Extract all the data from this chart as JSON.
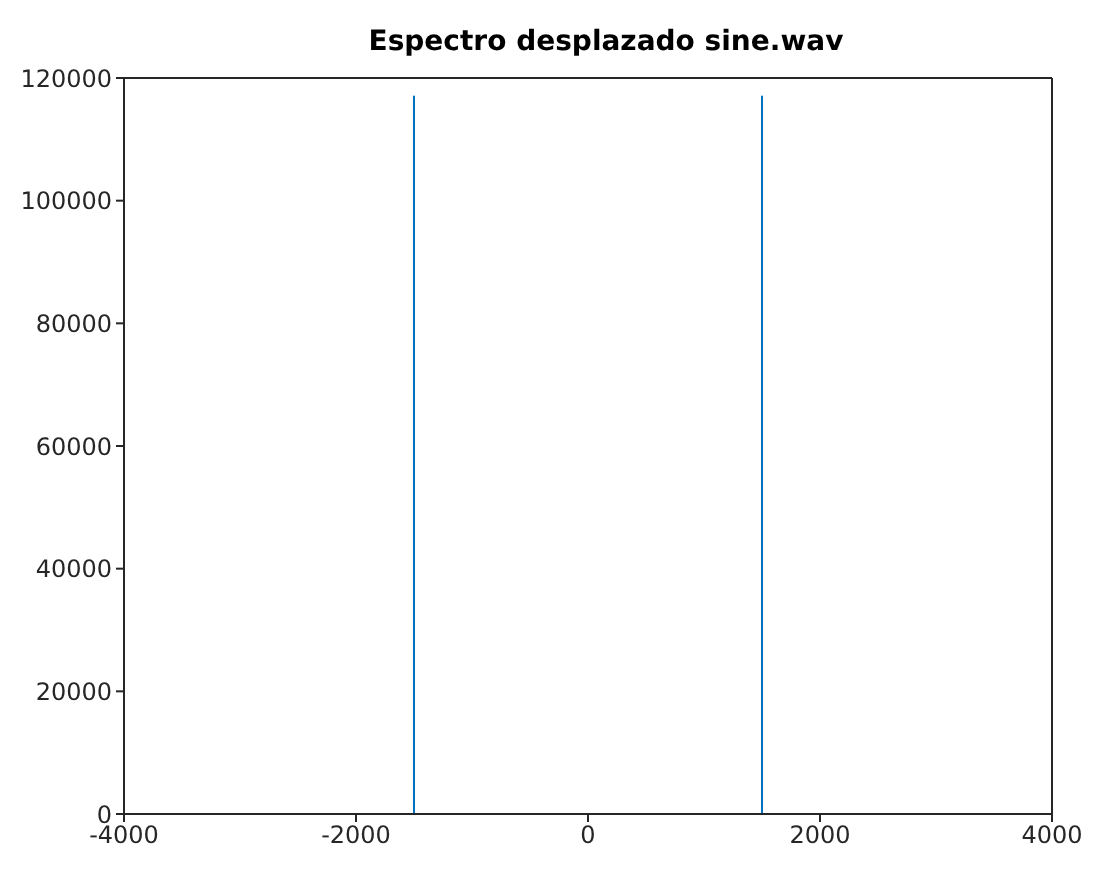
{
  "chart_data": {
    "type": "line",
    "title": "Espectro desplazado sine.wav",
    "x": [
      -4000,
      -1500,
      -1500,
      -1500,
      1500,
      1500,
      1500,
      4000
    ],
    "series": [
      {
        "color": "#0072bd",
        "values": [
          0,
          0,
          117000,
          0,
          0,
          117000,
          0,
          0
        ]
      }
    ],
    "xlim": [
      -4000,
      4000
    ],
    "xticks": [
      -4000,
      -2000,
      0,
      2000,
      4000
    ],
    "ylim": [
      0,
      120000
    ],
    "yticks": [
      0,
      20000,
      40000,
      60000,
      80000,
      100000,
      120000
    ],
    "grid": false,
    "legend": false,
    "marker": "none",
    "line_style": "solid"
  }
}
